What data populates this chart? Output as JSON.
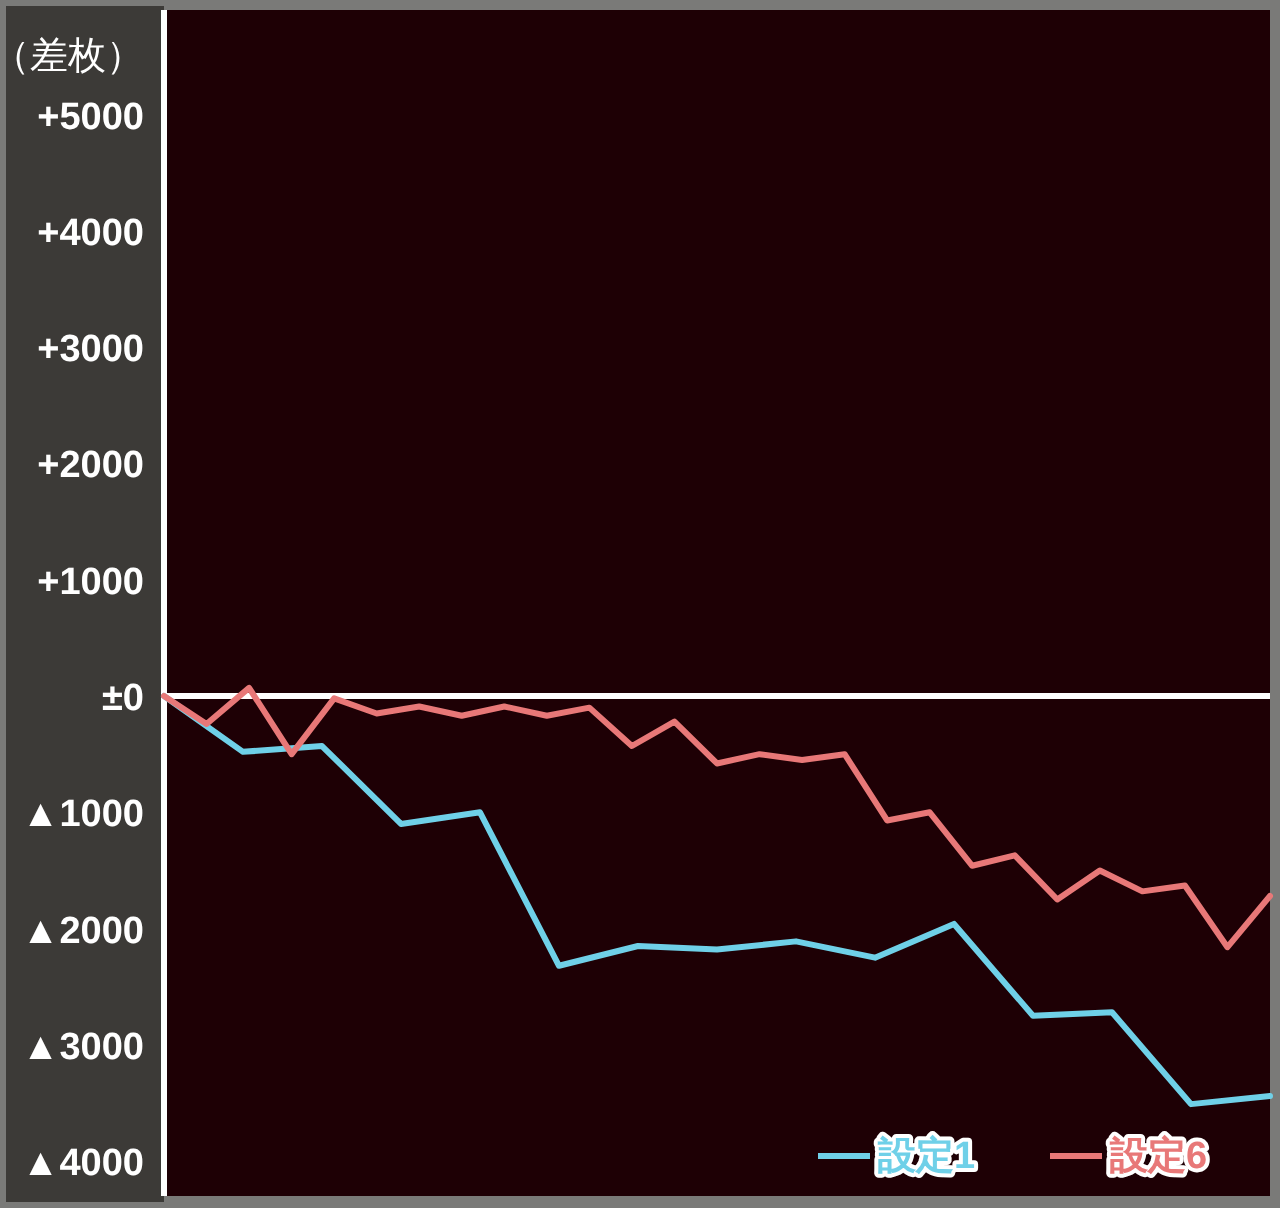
{
  "chart_data": {
    "type": "line",
    "ylabel": "（差枚）",
    "ylim": [
      -4300,
      5900
    ],
    "categories": [
      null,
      null,
      null,
      null,
      null,
      null,
      null,
      null,
      null,
      null,
      null,
      null,
      null,
      null,
      null,
      null,
      null,
      null,
      null,
      null,
      null,
      null,
      null,
      null,
      null,
      null,
      null,
      null,
      null,
      null,
      null,
      null,
      null,
      null,
      null,
      null,
      null,
      null,
      null,
      null,
      null,
      null,
      null,
      null,
      null,
      null,
      null,
      null,
      null,
      null,
      null,
      null,
      null,
      null,
      null,
      null,
      null,
      null,
      null,
      null,
      null,
      null,
      null,
      null,
      null,
      null,
      null,
      null,
      null,
      null,
      null,
      null,
      null,
      null,
      null,
      null,
      null,
      null,
      null,
      null,
      null,
      null,
      null,
      null,
      null,
      null,
      null,
      null,
      null,
      null,
      null,
      null,
      null,
      null,
      null,
      null,
      null,
      null,
      null,
      null,
      null,
      null,
      null,
      null,
      null,
      null,
      null,
      null,
      null,
      null,
      null,
      null,
      null,
      null,
      null,
      null,
      null,
      null,
      null,
      null,
      null,
      null,
      null,
      null,
      null,
      null,
      null,
      null,
      null,
      null,
      null,
      null,
      null,
      null,
      null,
      null,
      null,
      null,
      null,
      null,
      null,
      null,
      null,
      null,
      null,
      null,
      null,
      null,
      null,
      null,
      null,
      null,
      null,
      null,
      null,
      null,
      null,
      null,
      null,
      null,
      null,
      null,
      null,
      null,
      null,
      null,
      null,
      null,
      null,
      null,
      null,
      null,
      null,
      null,
      null,
      null,
      null,
      null,
      null,
      null,
      null,
      null,
      null
    ],
    "yticks": [
      {
        "value": 5000,
        "label": "+5000"
      },
      {
        "value": 4000,
        "label": "+4000"
      },
      {
        "value": 3000,
        "label": "+3000"
      },
      {
        "value": 2000,
        "label": "+2000"
      },
      {
        "value": 1000,
        "label": "+1000"
      },
      {
        "value": 0,
        "label": "±0"
      },
      {
        "value": -1000,
        "label": "▲1000"
      },
      {
        "value": -2000,
        "label": "▲2000"
      },
      {
        "value": -3000,
        "label": "▲3000"
      },
      {
        "value": -4000,
        "label": "▲4000"
      }
    ],
    "tick_labels": "y",
    "grid": false,
    "legend": "bottom right",
    "line_style": "solid",
    "ref_lines": [
      {
        "axis": "y",
        "value": 0,
        "color": "#ffffff"
      }
    ],
    "series": [
      {
        "name": "設定1",
        "color": "#6fd0e8",
        "values": [
          0,
          null,
          null,
          null,
          null,
          null,
          null,
          null,
          null,
          null,
          null,
          null,
          null,
          -480,
          null,
          null,
          null,
          null,
          null,
          null,
          null,
          null,
          null,
          null,
          null,
          null,
          -430,
          null,
          null,
          null,
          null,
          null,
          null,
          null,
          null,
          null,
          null,
          null,
          null,
          -1100,
          null,
          null,
          null,
          null,
          null,
          null,
          null,
          null,
          null,
          null,
          null,
          null,
          -1000,
          null,
          null,
          null,
          null,
          null,
          null,
          null,
          null,
          null,
          null,
          null,
          null,
          -2320,
          null,
          null,
          null,
          null,
          null,
          null,
          null,
          null,
          null,
          null,
          null,
          null,
          -2150,
          null,
          null,
          null,
          null,
          null,
          null,
          null,
          null,
          null,
          null,
          null,
          null,
          -2180,
          null,
          null,
          null,
          null,
          null,
          null,
          null,
          null,
          null,
          null,
          null,
          null,
          -2110,
          null,
          null,
          null,
          null,
          null,
          null,
          null,
          null,
          null,
          null,
          null,
          null,
          -2250,
          null,
          null,
          null,
          null,
          null,
          null,
          null,
          null,
          null,
          null,
          null,
          null,
          -1960,
          null,
          null,
          null,
          null,
          null,
          null,
          null,
          null,
          null,
          null,
          null,
          null,
          -2750,
          null,
          null,
          null,
          null,
          null,
          null,
          null,
          null,
          null,
          null,
          null,
          null,
          -2720,
          null,
          null,
          null,
          null,
          null,
          null,
          null,
          null,
          null,
          null,
          null,
          null,
          -3510,
          null,
          null,
          null,
          null,
          null,
          null,
          null,
          null,
          null,
          null,
          null,
          null,
          -3440
        ]
      },
      {
        "name": "設定6",
        "color": "#e87878",
        "values": [
          0,
          null,
          null,
          null,
          null,
          null,
          null,
          -240,
          null,
          null,
          null,
          null,
          null,
          null,
          70,
          null,
          null,
          null,
          null,
          null,
          null,
          -500,
          null,
          null,
          null,
          null,
          null,
          null,
          -20,
          null,
          null,
          null,
          null,
          null,
          null,
          -150,
          null,
          null,
          null,
          null,
          null,
          null,
          -90,
          null,
          null,
          null,
          null,
          null,
          null,
          -170,
          null,
          null,
          null,
          null,
          null,
          null,
          -90,
          null,
          null,
          null,
          null,
          null,
          null,
          -170,
          null,
          null,
          null,
          null,
          null,
          null,
          -100,
          null,
          null,
          null,
          null,
          null,
          null,
          -430,
          null,
          null,
          null,
          null,
          null,
          null,
          -220,
          null,
          null,
          null,
          null,
          null,
          null,
          -580,
          null,
          null,
          null,
          null,
          null,
          null,
          -500,
          null,
          null,
          null,
          null,
          null,
          null,
          -550,
          null,
          null,
          null,
          null,
          null,
          null,
          -500,
          null,
          null,
          null,
          null,
          null,
          null,
          -1070,
          null,
          null,
          null,
          null,
          null,
          null,
          -1000,
          null,
          null,
          null,
          null,
          null,
          null,
          -1460,
          null,
          null,
          null,
          null,
          null,
          null,
          -1370,
          null,
          null,
          null,
          null,
          null,
          null,
          -1750,
          null,
          null,
          null,
          null,
          null,
          null,
          -1500,
          null,
          null,
          null,
          null,
          null,
          null,
          -1680,
          null,
          null,
          null,
          null,
          null,
          null,
          -1630,
          null,
          null,
          null,
          null,
          null,
          null,
          -2160,
          null,
          null,
          null,
          null,
          null,
          null,
          -1720
        ]
      }
    ]
  }
}
